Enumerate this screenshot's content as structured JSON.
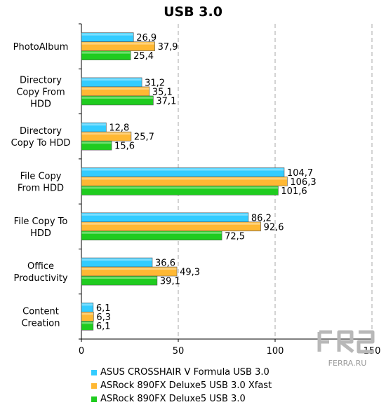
{
  "chart_data": {
    "type": "bar",
    "orientation": "horizontal",
    "title": "USB 3.0",
    "categories": [
      [
        "PhotoAlbum"
      ],
      [
        "Directory",
        "Copy From",
        "HDD"
      ],
      [
        "Directory",
        "Copy To HDD"
      ],
      [
        "File Copy",
        "From HDD"
      ],
      [
        "File Copy To",
        "HDD"
      ],
      [
        "Office",
        "Productivity"
      ],
      [
        "Content",
        "Creation"
      ]
    ],
    "series": [
      {
        "name": "ASUS CROSSHAIR V Formula USB 3.0",
        "color": "#33ccff",
        "values": [
          26.9,
          31.2,
          12.8,
          104.7,
          86.2,
          36.6,
          6.1
        ],
        "labels": [
          "26,9",
          "31,2",
          "12,8",
          "104,7",
          "86,2",
          "36,6",
          "6,1"
        ]
      },
      {
        "name": "ASRock 890FX Deluxe5 USB 3.0 Xfast",
        "color": "#ffb833",
        "values": [
          37.9,
          35.1,
          25.7,
          106.3,
          92.6,
          49.3,
          6.3
        ],
        "labels": [
          "37,9",
          "35,1",
          "25,7",
          "106,3",
          "92,6",
          "49,3",
          "6,3"
        ]
      },
      {
        "name": "ASRock 890FX Deluxe5 USB 3.0",
        "color": "#1fcc1f",
        "values": [
          25.4,
          37.1,
          15.6,
          101.6,
          72.5,
          39.1,
          6.1
        ],
        "labels": [
          "25,4",
          "37,1",
          "15,6",
          "101,6",
          "72,5",
          "39,1",
          "6,1"
        ]
      }
    ],
    "xlim": [
      0,
      150
    ],
    "xticks": [
      0,
      50,
      100,
      150
    ],
    "grid": "vertical-dashed",
    "legend_position": "bottom"
  },
  "watermark": {
    "text": "FERRA.RU"
  }
}
